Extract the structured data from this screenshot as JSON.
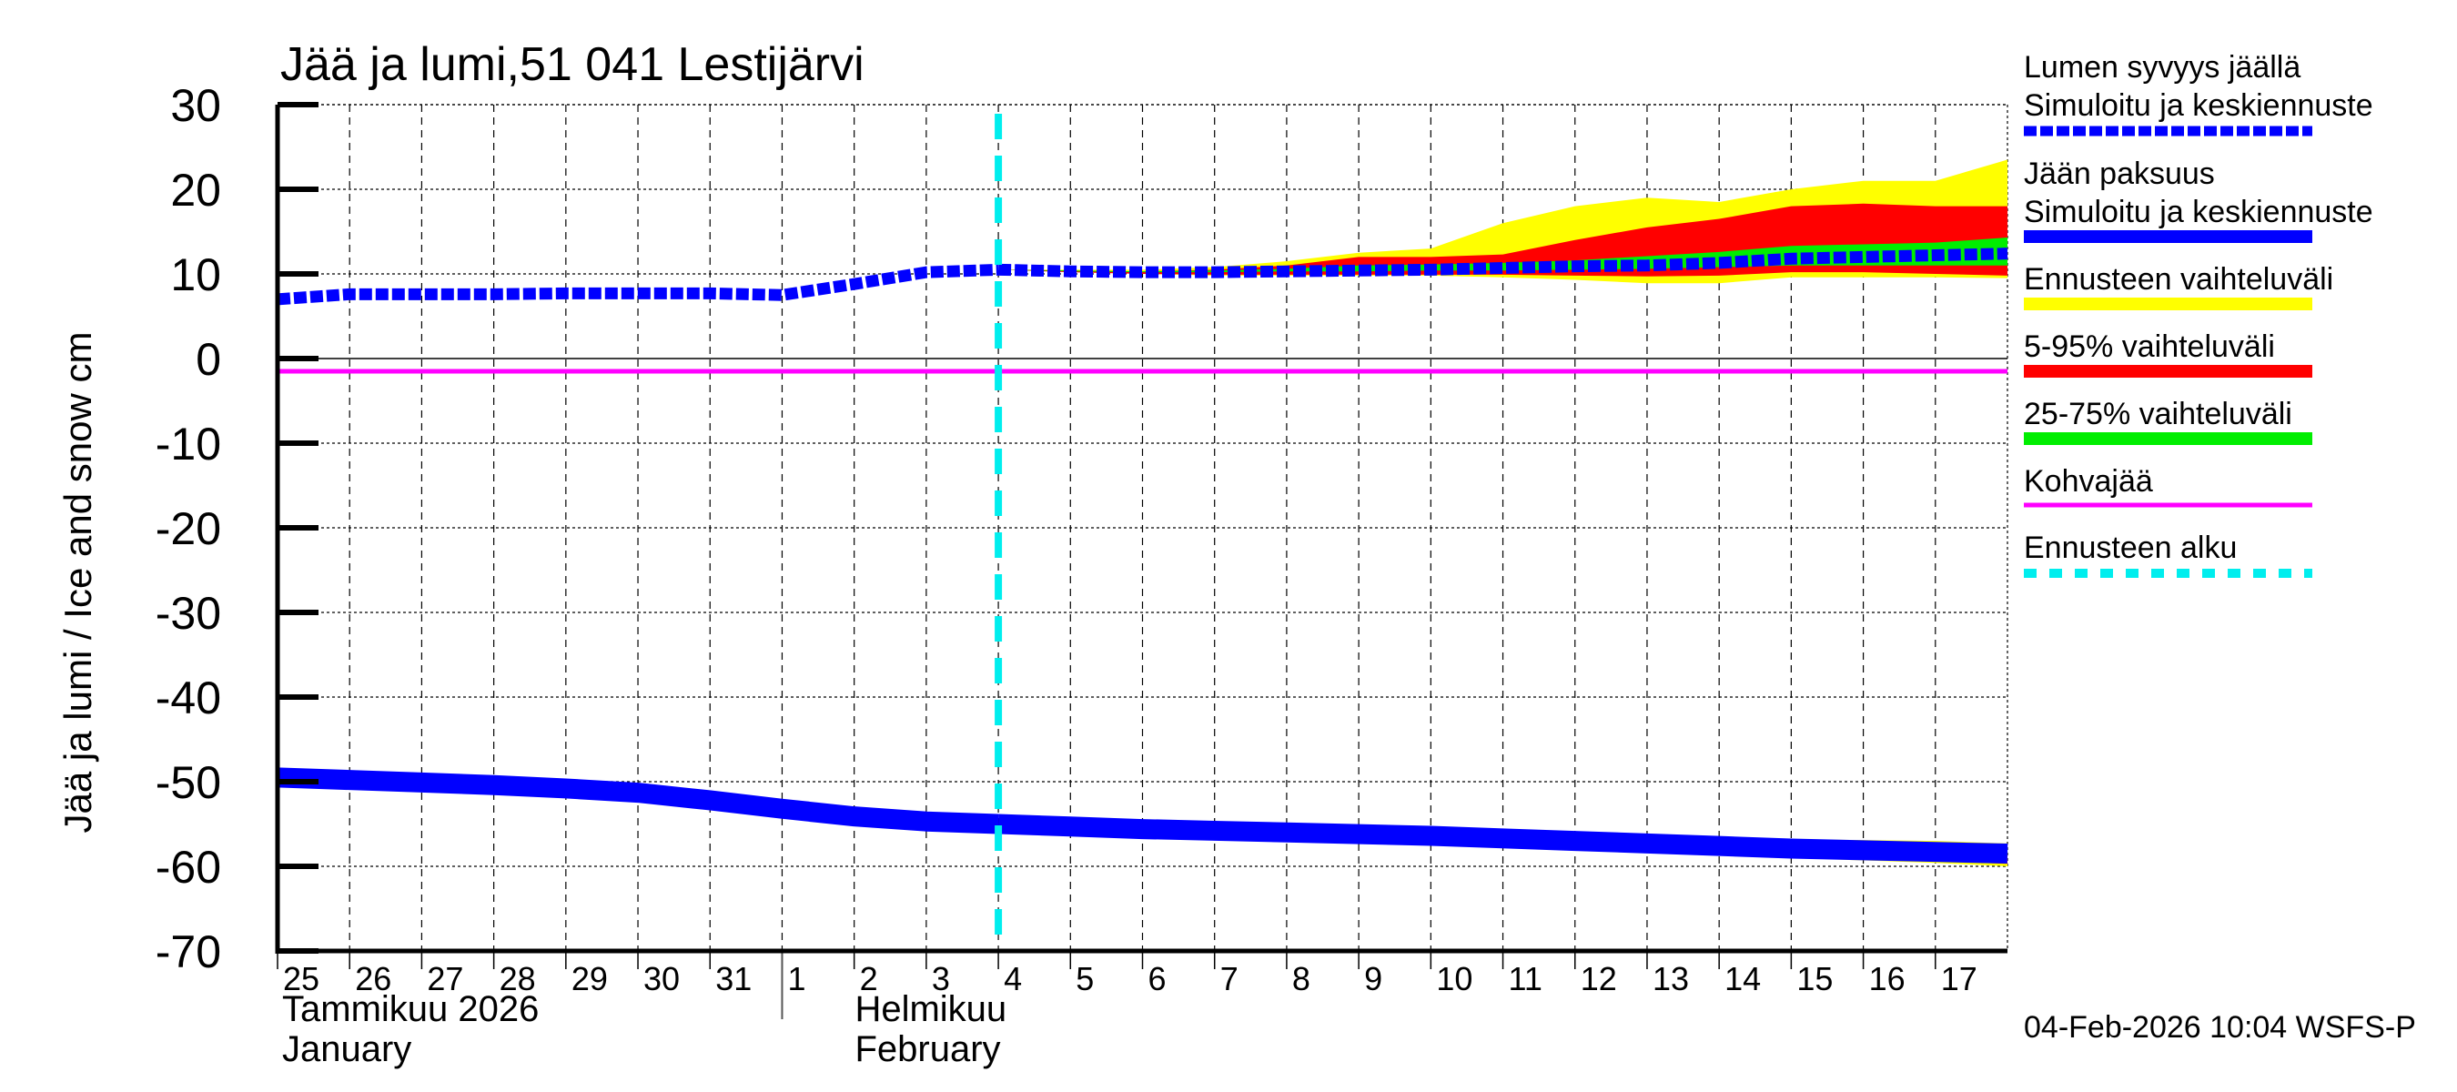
{
  "chart_data": {
    "type": "area",
    "title": "Jää ja lumi,51 041 Lestijärvi",
    "ylabel": "Jää ja lumi / Ice and snow    cm",
    "ylim": [
      -70,
      30
    ],
    "yticks": [
      30,
      20,
      10,
      0,
      -10,
      -20,
      -30,
      -40,
      -50,
      -60,
      -70
    ],
    "grid": true,
    "legend_placement": "right",
    "x_range": [
      "2026-01-25",
      "2026-02-18"
    ],
    "xtick_labels": [
      "25",
      "26",
      "27",
      "28",
      "29",
      "30",
      "31",
      "1",
      "2",
      "3",
      "4",
      "5",
      "6",
      "7",
      "8",
      "9",
      "10",
      "11",
      "12",
      "13",
      "14",
      "15",
      "16",
      "17"
    ],
    "month_labels": [
      {
        "fi": "Tammikuu  2026",
        "en": "January"
      },
      {
        "fi": "Helmikuu",
        "en": "February"
      }
    ],
    "forecast_start": "2026-02-04",
    "kohvajaa_value": -1.5,
    "dates_obs": [
      "2026-01-25",
      "2026-01-26",
      "2026-01-27",
      "2026-01-28",
      "2026-01-29",
      "2026-01-30",
      "2026-01-31",
      "2026-02-01",
      "2026-02-02",
      "2026-02-03",
      "2026-02-04"
    ],
    "dates_fc": [
      "2026-02-04",
      "2026-02-05",
      "2026-02-06",
      "2026-02-07",
      "2026-02-08",
      "2026-02-09",
      "2026-02-10",
      "2026-02-11",
      "2026-02-12",
      "2026-02-13",
      "2026-02-14",
      "2026-02-15",
      "2026-02-16",
      "2026-02-17",
      "2026-02-18"
    ],
    "snow": {
      "observed": [
        7.0,
        7.6,
        7.6,
        7.6,
        7.7,
        7.7,
        7.7,
        7.5,
        8.8,
        10.2,
        10.5
      ],
      "median": [
        10.5,
        10.3,
        10.2,
        10.2,
        10.3,
        10.4,
        10.5,
        10.7,
        10.9,
        11.0,
        11.3,
        11.8,
        12.0,
        12.2,
        12.4
      ],
      "range_low": [
        10.5,
        10.3,
        10.0,
        9.8,
        9.8,
        9.8,
        9.8,
        9.6,
        9.3,
        8.9,
        8.9,
        9.6,
        9.6,
        9.6,
        9.5
      ],
      "range_high": [
        10.5,
        10.5,
        10.5,
        10.8,
        11.5,
        12.5,
        13.0,
        16.0,
        18.0,
        19.0,
        18.5,
        20.0,
        21.0,
        21.0,
        23.5
      ],
      "p5": [
        10.5,
        10.2,
        10.0,
        9.9,
        9.9,
        9.9,
        9.9,
        9.9,
        9.8,
        9.7,
        9.8,
        10.2,
        10.2,
        10.0,
        9.8
      ],
      "p95": [
        10.5,
        10.4,
        10.3,
        10.5,
        11.0,
        12.0,
        12.0,
        12.3,
        14.0,
        15.5,
        16.5,
        18.0,
        18.3,
        18.0,
        18.0
      ],
      "p25": [
        10.5,
        10.3,
        10.2,
        10.2,
        10.3,
        10.3,
        10.4,
        10.4,
        10.5,
        10.6,
        10.8,
        11.0,
        11.0,
        11.0,
        11.0
      ],
      "p75": [
        10.5,
        10.4,
        10.3,
        10.4,
        10.6,
        11.0,
        11.1,
        11.3,
        11.6,
        12.1,
        12.6,
        13.3,
        13.5,
        13.7,
        14.3
      ]
    },
    "ice": {
      "observed": [
        -49.5,
        -49.8,
        -50.1,
        -50.4,
        -50.8,
        -51.3,
        -52.2,
        -53.2,
        -54.1,
        -54.7,
        -55.0
      ],
      "median": [
        -55.0,
        -55.3,
        -55.6,
        -55.8,
        -56.0,
        -56.2,
        -56.4,
        -56.7,
        -57.0,
        -57.3,
        -57.6,
        -57.9,
        -58.1,
        -58.3,
        -58.5
      ],
      "range_low": [
        -55.0,
        -55.3,
        -55.6,
        -55.8,
        -56.0,
        -56.3,
        -56.6,
        -57.0,
        -57.5,
        -58.0,
        -58.6,
        -59.0,
        -59.3,
        -59.6,
        -60.0
      ],
      "range_high": [
        -55.0,
        -55.3,
        -55.5,
        -55.6,
        -55.7,
        -55.8,
        -55.9,
        -56.1,
        -56.3,
        -56.5,
        -56.6,
        -56.8,
        -56.9,
        -57.0,
        -57.3
      ],
      "p5": [
        -55.0,
        -55.3,
        -55.6,
        -55.8,
        -56.0,
        -56.3,
        -56.6,
        -57.0,
        -57.4,
        -57.9,
        -58.4,
        -58.8,
        -59.1,
        -59.4,
        -59.7
      ],
      "p95": [
        -55.0,
        -55.3,
        -55.5,
        -55.7,
        -55.9,
        -56.0,
        -56.2,
        -56.4,
        -56.6,
        -56.8,
        -57.1,
        -57.3,
        -57.5,
        -57.7,
        -58.0
      ],
      "p25": [
        -55.0,
        -55.3,
        -55.6,
        -55.8,
        -56.0,
        -56.2,
        -56.4,
        -56.7,
        -57.0,
        -57.3,
        -57.6,
        -57.9,
        -58.1,
        -58.3,
        -58.5
      ],
      "p75": [
        -55.0,
        -55.3,
        -55.6,
        -55.8,
        -56.0,
        -56.2,
        -56.4,
        -56.7,
        -57.0,
        -57.3,
        -57.6,
        -57.9,
        -58.1,
        -58.3,
        -58.5
      ]
    },
    "colors": {
      "snow": "#0000ff",
      "ice": "#0000ff",
      "range": "#ffff00",
      "p5_95": "#ff0000",
      "p25_75": "#00ee00",
      "kohvajaa": "#ff00ff",
      "forecast_start": "#00eeee"
    },
    "legend": [
      {
        "line1": "Lumen syvyys jäällä",
        "line2": "Simuloitu ja keskiennuste",
        "style": "dashed",
        "color": "#0000ff"
      },
      {
        "line1": "Jään paksuus",
        "line2": "Simuloitu ja keskiennuste",
        "style": "solid",
        "color": "#0000ff"
      },
      {
        "line1": "Ennusteen vaihteluväli",
        "style": "solid",
        "color": "#ffff00"
      },
      {
        "line1": "5-95% vaihteluväli",
        "style": "solid",
        "color": "#ff0000"
      },
      {
        "line1": "25-75% vaihteluväli",
        "style": "solid",
        "color": "#00ee00"
      },
      {
        "line1": "Kohvajää",
        "style": "thin",
        "color": "#ff00ff"
      },
      {
        "line1": "Ennusteen alku",
        "style": "dotted",
        "color": "#00eeee"
      }
    ]
  },
  "footer": {
    "timestamp": "04-Feb-2026 10:04 WSFS-P"
  }
}
